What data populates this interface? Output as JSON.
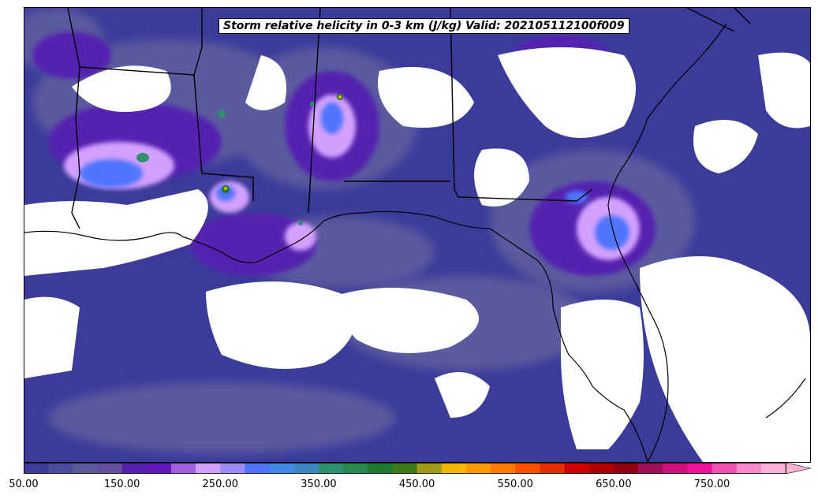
{
  "title": "Storm relative helicity in 0-3 km (J/kg) Valid: 202105112100f009",
  "colorbar": {
    "min": 50,
    "step": 25,
    "extend": "max",
    "tick_labels": [
      "50.00",
      "150.00",
      "250.00",
      "350.00",
      "450.00",
      "550.00",
      "650.00",
      "750.00"
    ],
    "tick_values": [
      50,
      150,
      250,
      350,
      450,
      550,
      650,
      750
    ],
    "colors": [
      "#3b3b9a",
      "#4a4d9d",
      "#5a5a9f",
      "#674da1",
      "#5520b0",
      "#6315c0",
      "#a060e0",
      "#d3a0ff",
      "#9a8cff",
      "#4f74ff",
      "#3f8ae8",
      "#3b86c0",
      "#2f9070",
      "#28894f",
      "#1d7a2e",
      "#3f7a18",
      "#9c9a18",
      "#f4b800",
      "#ff9b00",
      "#ff7800",
      "#ff5000",
      "#e43000",
      "#d00000",
      "#b00000",
      "#900010",
      "#a0105a",
      "#d0107a",
      "#f0109a",
      "#f050b0",
      "#f888c8",
      "#ffb0d8"
    ]
  },
  "map_colors": {
    "state_border": "#000000",
    "coastline": "#000000",
    "no_data": "#ffffff"
  }
}
